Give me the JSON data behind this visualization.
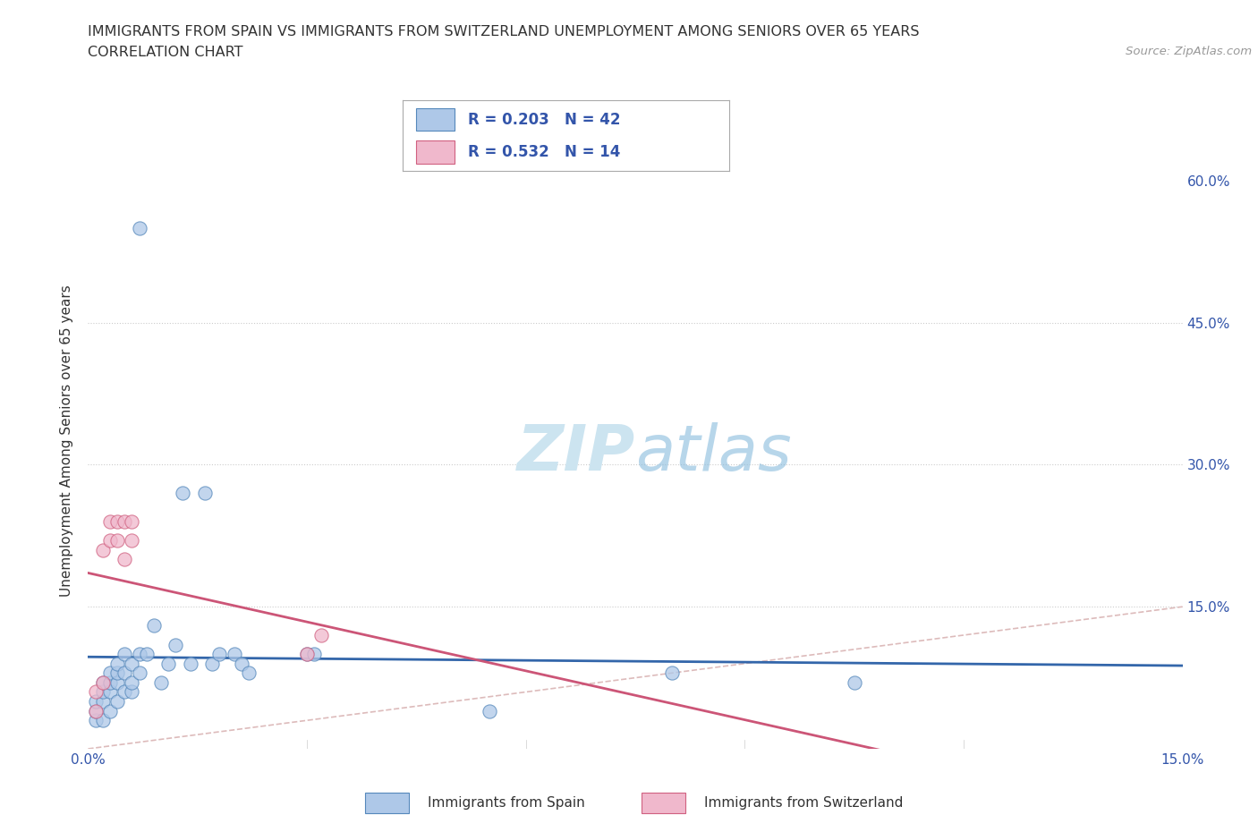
{
  "title_line1": "IMMIGRANTS FROM SPAIN VS IMMIGRANTS FROM SWITZERLAND UNEMPLOYMENT AMONG SENIORS OVER 65 YEARS",
  "title_line2": "CORRELATION CHART",
  "source": "Source: ZipAtlas.com",
  "ylabel": "Unemployment Among Seniors over 65 years",
  "xlim": [
    0.0,
    0.15
  ],
  "ylim": [
    0.0,
    0.65
  ],
  "xtick_positions": [
    0.0,
    0.03,
    0.06,
    0.09,
    0.12,
    0.15
  ],
  "xticklabels": [
    "0.0%",
    "",
    "",
    "",
    "",
    "15.0%"
  ],
  "ytick_positions": [
    0.0,
    0.15,
    0.3,
    0.45,
    0.6
  ],
  "ytick_labels": [
    "",
    "15.0%",
    "30.0%",
    "45.0%",
    "60.0%"
  ],
  "spain_face_color": "#aec8e8",
  "spain_edge_color": "#5588bb",
  "switzerland_face_color": "#f0b8cc",
  "switzerland_edge_color": "#d06080",
  "spain_line_color": "#3366aa",
  "switzerland_line_color": "#cc5577",
  "diagonal_color": "#ddbbbb",
  "watermark_color": "#cce4f0",
  "legend_text_color": "#3355aa",
  "spain_R": "0.203",
  "spain_N": "42",
  "switzerland_R": "0.532",
  "switzerland_N": "14",
  "spain_x": [
    0.001,
    0.001,
    0.001,
    0.002,
    0.002,
    0.002,
    0.002,
    0.003,
    0.003,
    0.003,
    0.003,
    0.004,
    0.004,
    0.004,
    0.004,
    0.005,
    0.005,
    0.005,
    0.006,
    0.006,
    0.006,
    0.007,
    0.007,
    0.007,
    0.008,
    0.009,
    0.01,
    0.011,
    0.012,
    0.013,
    0.014,
    0.016,
    0.017,
    0.018,
    0.02,
    0.021,
    0.022,
    0.03,
    0.031,
    0.055,
    0.08,
    0.105
  ],
  "spain_y": [
    0.03,
    0.04,
    0.05,
    0.03,
    0.05,
    0.06,
    0.07,
    0.04,
    0.06,
    0.07,
    0.08,
    0.05,
    0.07,
    0.08,
    0.09,
    0.06,
    0.08,
    0.1,
    0.06,
    0.07,
    0.09,
    0.08,
    0.1,
    0.55,
    0.1,
    0.13,
    0.07,
    0.09,
    0.11,
    0.27,
    0.09,
    0.27,
    0.09,
    0.1,
    0.1,
    0.09,
    0.08,
    0.1,
    0.1,
    0.04,
    0.08,
    0.07
  ],
  "switzerland_x": [
    0.001,
    0.001,
    0.002,
    0.002,
    0.003,
    0.003,
    0.004,
    0.004,
    0.005,
    0.005,
    0.006,
    0.006,
    0.03,
    0.032
  ],
  "switzerland_y": [
    0.04,
    0.06,
    0.07,
    0.21,
    0.22,
    0.24,
    0.22,
    0.24,
    0.2,
    0.24,
    0.22,
    0.24,
    0.1,
    0.12
  ]
}
